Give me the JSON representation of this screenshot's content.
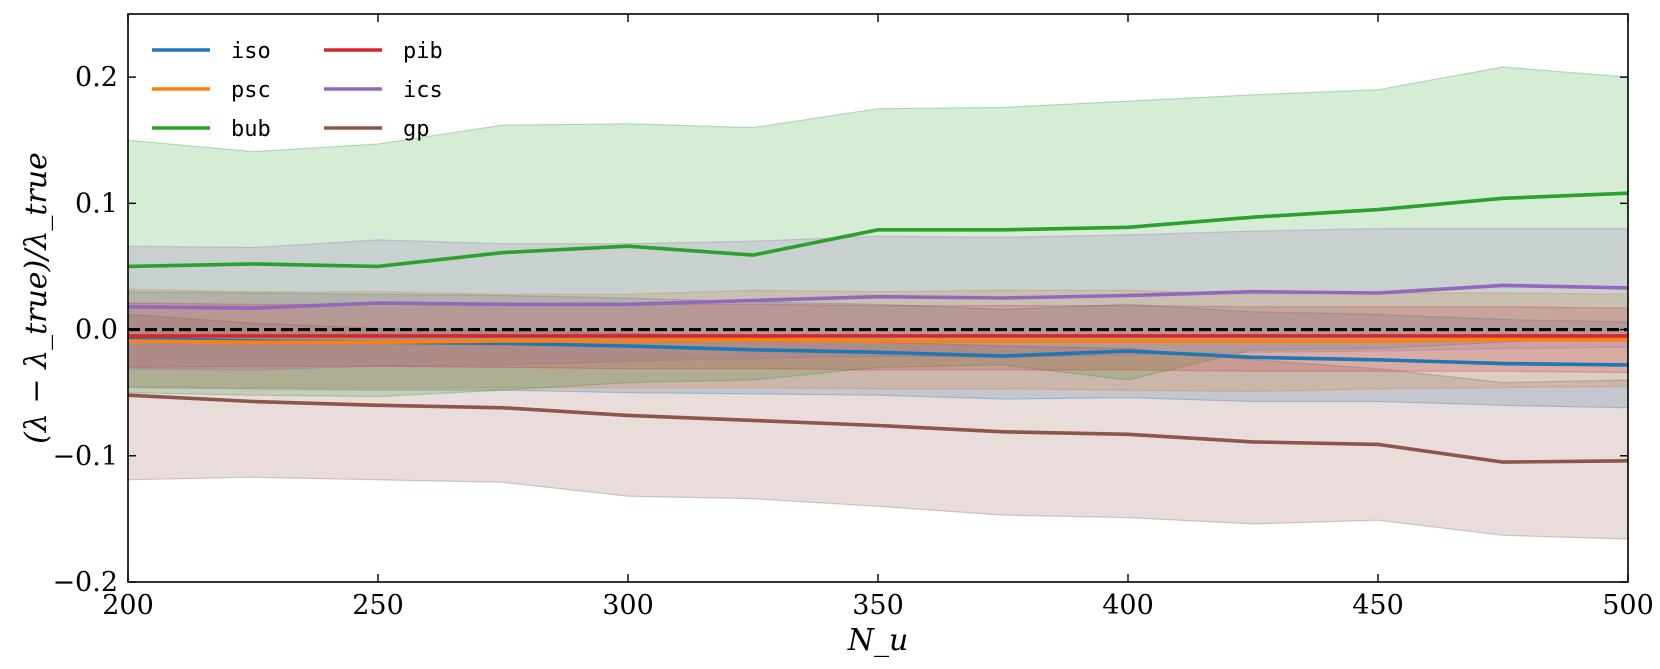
{
  "chart_data": {
    "type": "line",
    "xlabel": "N_u",
    "ylabel": "(λ − λ_true)/λ_true",
    "xlim": [
      200,
      500
    ],
    "ylim": [
      -0.2,
      0.25
    ],
    "xticks": [
      200,
      250,
      300,
      350,
      400,
      450,
      500
    ],
    "yticks": [
      -0.2,
      -0.1,
      0.0,
      0.1,
      0.2
    ],
    "xtick_labels": [
      "200",
      "250",
      "300",
      "350",
      "400",
      "450",
      "500"
    ],
    "ytick_labels": [
      "−0.2",
      "−0.1",
      "0.0",
      "0.1",
      "0.2"
    ],
    "grid": false,
    "legend_position": "top-left",
    "reference_line": {
      "y": 0.0,
      "style": "dashed",
      "color": "#000000"
    },
    "x": [
      200,
      225,
      250,
      275,
      300,
      325,
      350,
      375,
      400,
      425,
      450,
      475,
      500
    ],
    "series": [
      {
        "name": "iso",
        "color": "#1f77b4",
        "values": [
          -0.007,
          -0.009,
          -0.01,
          -0.011,
          -0.013,
          -0.016,
          -0.018,
          -0.021,
          -0.017,
          -0.022,
          -0.024,
          -0.027,
          -0.028
        ],
        "lower": [
          -0.046,
          -0.047,
          -0.048,
          -0.048,
          -0.05,
          -0.051,
          -0.052,
          -0.055,
          -0.054,
          -0.057,
          -0.057,
          -0.06,
          -0.062
        ],
        "upper": [
          0.03,
          0.029,
          0.028,
          0.027,
          0.025,
          0.022,
          0.02,
          0.016,
          0.02,
          0.014,
          0.012,
          0.008,
          0.006
        ]
      },
      {
        "name": "psc",
        "color": "#ff7f0e",
        "values": [
          -0.009,
          -0.01,
          -0.01,
          -0.009,
          -0.009,
          -0.008,
          -0.009,
          -0.009,
          -0.009,
          -0.009,
          -0.009,
          -0.008,
          -0.008
        ],
        "lower": [
          -0.045,
          -0.046,
          -0.046,
          -0.046,
          -0.046,
          -0.046,
          -0.047,
          -0.047,
          -0.048,
          -0.049,
          -0.047,
          -0.046,
          -0.045
        ],
        "upper": [
          0.032,
          0.03,
          0.03,
          0.028,
          0.028,
          0.031,
          0.03,
          0.031,
          0.031,
          0.028,
          0.029,
          0.029,
          0.028
        ]
      },
      {
        "name": "bub",
        "color": "#2ca02c",
        "values": [
          0.05,
          0.052,
          0.05,
          0.061,
          0.066,
          0.059,
          0.079,
          0.079,
          0.081,
          0.089,
          0.095,
          0.104,
          0.108
        ],
        "lower": [
          -0.05,
          -0.052,
          -0.053,
          -0.048,
          -0.042,
          -0.04,
          -0.03,
          -0.028,
          -0.04,
          -0.016,
          -0.015,
          -0.01,
          -0.005
        ],
        "upper": [
          0.15,
          0.141,
          0.147,
          0.162,
          0.163,
          0.16,
          0.175,
          0.176,
          0.181,
          0.186,
          0.19,
          0.208,
          0.2
        ]
      },
      {
        "name": "pib",
        "color": "#d62728",
        "values": [
          -0.005,
          -0.005,
          -0.005,
          -0.005,
          -0.005,
          -0.005,
          -0.005,
          -0.005,
          -0.005,
          -0.005,
          -0.005,
          -0.005,
          -0.005
        ],
        "lower": [
          -0.03,
          -0.029,
          -0.029,
          -0.03,
          -0.031,
          -0.031,
          -0.032,
          -0.032,
          -0.032,
          -0.033,
          -0.033,
          -0.033,
          -0.034
        ],
        "upper": [
          0.021,
          0.02,
          0.02,
          0.02,
          0.02,
          0.02,
          0.019,
          0.019,
          0.019,
          0.018,
          0.018,
          0.018,
          0.017
        ]
      },
      {
        "name": "ics",
        "color": "#9467bd",
        "values": [
          0.018,
          0.017,
          0.021,
          0.02,
          0.02,
          0.023,
          0.026,
          0.025,
          0.027,
          0.03,
          0.029,
          0.035,
          0.033
        ],
        "lower": [
          -0.031,
          -0.032,
          -0.029,
          -0.028,
          -0.025,
          -0.023,
          -0.021,
          -0.022,
          -0.02,
          -0.018,
          -0.017,
          -0.015,
          -0.014
        ],
        "upper": [
          0.066,
          0.065,
          0.071,
          0.068,
          0.068,
          0.07,
          0.074,
          0.073,
          0.075,
          0.078,
          0.08,
          0.08,
          0.08
        ]
      },
      {
        "name": "gp",
        "color": "#8c564b",
        "values": [
          -0.052,
          -0.057,
          -0.06,
          -0.062,
          -0.068,
          -0.072,
          -0.076,
          -0.081,
          -0.083,
          -0.089,
          -0.091,
          -0.105,
          -0.104
        ],
        "lower": [
          -0.119,
          -0.117,
          -0.119,
          -0.121,
          -0.132,
          -0.134,
          -0.14,
          -0.147,
          -0.149,
          -0.154,
          -0.151,
          -0.163,
          -0.166
        ],
        "upper": [
          0.012,
          0.005,
          0.001,
          -0.001,
          -0.003,
          -0.006,
          -0.01,
          -0.013,
          -0.015,
          -0.024,
          -0.031,
          -0.042,
          -0.04
        ]
      }
    ]
  }
}
